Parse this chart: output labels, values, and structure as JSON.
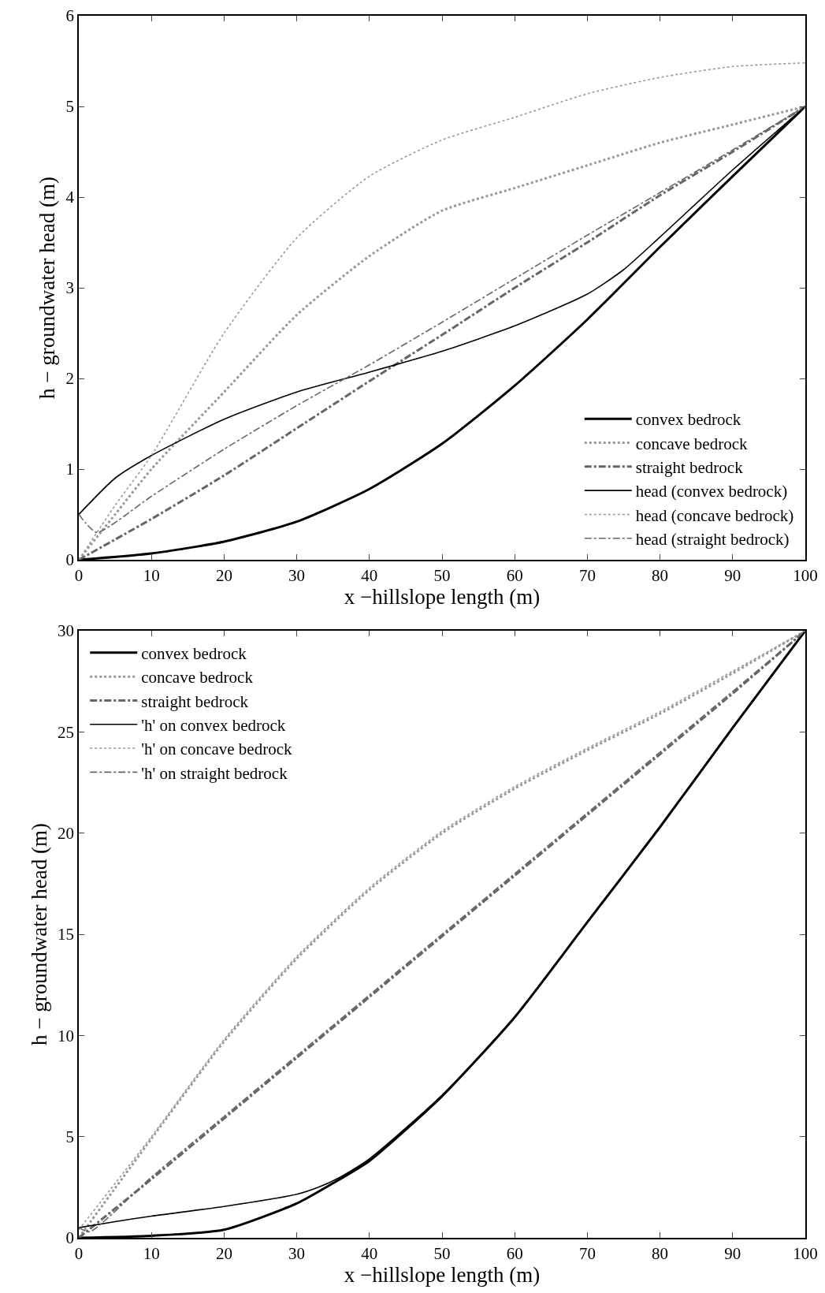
{
  "chart_data": [
    {
      "type": "line",
      "xlabel": "x −hillslope length (m)",
      "ylabel": "h − groundwater head (m)",
      "xlim": [
        0,
        100
      ],
      "ylim": [
        0,
        6
      ],
      "xticks": [
        0,
        10,
        20,
        30,
        40,
        50,
        60,
        70,
        80,
        90,
        100
      ],
      "yticks": [
        0,
        1,
        2,
        3,
        4,
        5,
        6
      ],
      "grid": false,
      "legend": "bottom right",
      "series": [
        {
          "name": "convex bedrock",
          "color": "#000000",
          "line_style": "solid",
          "x": [
            0,
            10,
            20,
            30,
            40,
            50,
            60,
            70,
            80,
            90,
            100
          ],
          "values": [
            0,
            0.07,
            0.2,
            0.42,
            0.78,
            1.28,
            1.92,
            2.65,
            3.45,
            4.23,
            5
          ]
        },
        {
          "name": "concave bedrock",
          "color": "#999999",
          "line_style": "dotted",
          "x": [
            0,
            5,
            10,
            20,
            30,
            40,
            50,
            60,
            70,
            80,
            90,
            100
          ],
          "values": [
            0,
            0.5,
            1.0,
            1.85,
            2.7,
            3.35,
            3.85,
            4.1,
            4.35,
            4.6,
            4.8,
            5
          ]
        },
        {
          "name": "straight bedrock",
          "color": "#666666",
          "line_style": "dashdot",
          "x": [
            0,
            10,
            20,
            30,
            40,
            50,
            60,
            70,
            80,
            90,
            100
          ],
          "values": [
            0,
            0.45,
            0.93,
            1.45,
            1.97,
            2.48,
            3.0,
            3.5,
            4.02,
            4.5,
            5
          ]
        },
        {
          "name": "head (convex bedrock)",
          "color": "#000000",
          "line_style": "solid",
          "x": [
            0,
            5,
            10,
            20,
            30,
            40,
            50,
            60,
            70,
            75,
            80,
            90,
            100
          ],
          "values": [
            0.5,
            0.9,
            1.15,
            1.55,
            1.85,
            2.07,
            2.3,
            2.58,
            2.93,
            3.2,
            3.56,
            4.3,
            5
          ]
        },
        {
          "name": "head (concave bedrock)",
          "color": "#999999",
          "line_style": "dotted",
          "x": [
            0,
            5,
            10,
            20,
            30,
            40,
            50,
            60,
            70,
            80,
            90,
            100
          ],
          "values": [
            0,
            0.6,
            1.15,
            2.5,
            3.55,
            4.23,
            4.63,
            4.88,
            5.14,
            5.32,
            5.44,
            5.48
          ]
        },
        {
          "name": "head (straight bedrock)",
          "color": "#666666",
          "line_style": "dashdot",
          "x": [
            0,
            1,
            2.5,
            10,
            20,
            30,
            40,
            50,
            60,
            70,
            80,
            90,
            100
          ],
          "values": [
            0.5,
            0.4,
            0.3,
            0.7,
            1.22,
            1.7,
            2.15,
            2.62,
            3.1,
            3.58,
            4.05,
            4.52,
            5
          ]
        }
      ]
    },
    {
      "type": "line",
      "xlabel": "x −hillslope length (m)",
      "ylabel": "h − groundwater head (m)",
      "xlim": [
        0,
        100
      ],
      "ylim": [
        0,
        30
      ],
      "xticks": [
        0,
        10,
        20,
        30,
        40,
        50,
        60,
        70,
        80,
        90,
        100
      ],
      "yticks": [
        0,
        5,
        10,
        15,
        20,
        25,
        30
      ],
      "grid": false,
      "legend": "top left",
      "series": [
        {
          "name": "convex bedrock",
          "color": "#000000",
          "line_style": "solid",
          "x": [
            0,
            10,
            20,
            30,
            35,
            40,
            50,
            60,
            70,
            80,
            90,
            100
          ],
          "values": [
            0,
            0.1,
            0.4,
            1.7,
            2.7,
            3.8,
            7.0,
            10.9,
            15.6,
            20.3,
            25.2,
            30
          ]
        },
        {
          "name": "concave bedrock",
          "color": "#999999",
          "line_style": "dotted",
          "x": [
            0,
            10,
            20,
            30,
            40,
            50,
            60,
            70,
            80,
            90,
            100
          ],
          "values": [
            0,
            4.9,
            9.7,
            13.8,
            17.2,
            20.0,
            22.2,
            24.1,
            25.9,
            27.9,
            30
          ]
        },
        {
          "name": "straight bedrock",
          "color": "#666666",
          "line_style": "dashdot",
          "x": [
            0,
            10,
            20,
            30,
            40,
            50,
            60,
            70,
            80,
            90,
            100
          ],
          "values": [
            0,
            2.9,
            5.9,
            8.9,
            11.9,
            14.9,
            17.9,
            20.9,
            23.9,
            26.9,
            30
          ]
        },
        {
          "name": "'h' on convex bedrock",
          "color": "#000000",
          "line_style": "solid",
          "x": [
            0,
            5,
            10,
            20,
            30,
            33,
            36,
            40,
            50,
            60,
            70,
            80,
            90,
            100
          ],
          "values": [
            0.5,
            0.8,
            1.07,
            1.55,
            2.15,
            2.5,
            3.0,
            3.9,
            7.05,
            10.9,
            15.6,
            20.3,
            25.2,
            30
          ]
        },
        {
          "name": "'h' on concave bedrock",
          "color": "#999999",
          "line_style": "dotted",
          "x": [
            0,
            10,
            20,
            30,
            40,
            50,
            60,
            70,
            80,
            90,
            100
          ],
          "values": [
            0.4,
            5.0,
            9.8,
            13.9,
            17.3,
            20.1,
            22.3,
            24.2,
            26.0,
            28.0,
            30
          ]
        },
        {
          "name": "'h' on straight bedrock",
          "color": "#666666",
          "line_style": "dashdot",
          "x": [
            0,
            1.5,
            10,
            20,
            30,
            40,
            50,
            60,
            70,
            80,
            90,
            100
          ],
          "values": [
            0.5,
            0.3,
            3.0,
            6.0,
            9.0,
            12.0,
            15.0,
            18.0,
            21.0,
            24.0,
            27.0,
            30
          ]
        }
      ]
    }
  ]
}
